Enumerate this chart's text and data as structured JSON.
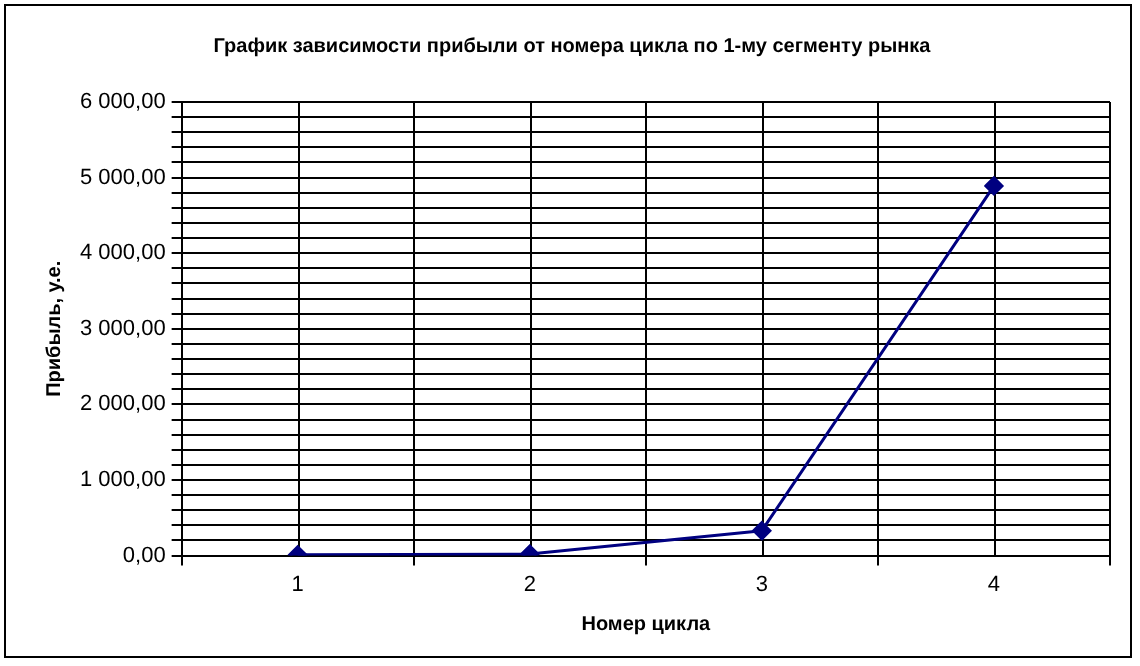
{
  "chart_data": {
    "type": "line",
    "title": "График зависимости прибыли от номера цикла по 1-му сегменту рынка",
    "xlabel": "Номер цикла",
    "ylabel": "Прибыль, у.е.",
    "categories": [
      "1",
      "2",
      "3",
      "4"
    ],
    "series": [
      {
        "color": "#000080",
        "values": [
          10,
          20,
          330,
          4890
        ]
      }
    ],
    "ylim": [
      0,
      6000
    ],
    "yticks": [
      {
        "value": 0,
        "label": "0,00"
      },
      {
        "value": 200,
        "label": null
      },
      {
        "value": 400,
        "label": null
      },
      {
        "value": 600,
        "label": null
      },
      {
        "value": 800,
        "label": null
      },
      {
        "value": 1000,
        "label": "1 000,00"
      },
      {
        "value": 1200,
        "label": null
      },
      {
        "value": 1400,
        "label": null
      },
      {
        "value": 1600,
        "label": null
      },
      {
        "value": 1800,
        "label": null
      },
      {
        "value": 2000,
        "label": "2 000,00"
      },
      {
        "value": 2200,
        "label": null
      },
      {
        "value": 2400,
        "label": null
      },
      {
        "value": 2600,
        "label": null
      },
      {
        "value": 2800,
        "label": null
      },
      {
        "value": 3000,
        "label": "3 000,00"
      },
      {
        "value": 3200,
        "label": null
      },
      {
        "value": 3400,
        "label": null
      },
      {
        "value": 3600,
        "label": null
      },
      {
        "value": 3800,
        "label": null
      },
      {
        "value": 4000,
        "label": "4 000,00"
      },
      {
        "value": 4200,
        "label": null
      },
      {
        "value": 4400,
        "label": null
      },
      {
        "value": 4600,
        "label": null
      },
      {
        "value": 4800,
        "label": null
      },
      {
        "value": 5000,
        "label": "5 000,00"
      },
      {
        "value": 5200,
        "label": null
      },
      {
        "value": 5400,
        "label": null
      },
      {
        "value": 5600,
        "label": null
      },
      {
        "value": 5800,
        "label": null
      },
      {
        "value": 6000,
        "label": "6 000,00"
      }
    ],
    "grid": true,
    "legend": false,
    "marker": "diamond",
    "line_style": "solid"
  }
}
